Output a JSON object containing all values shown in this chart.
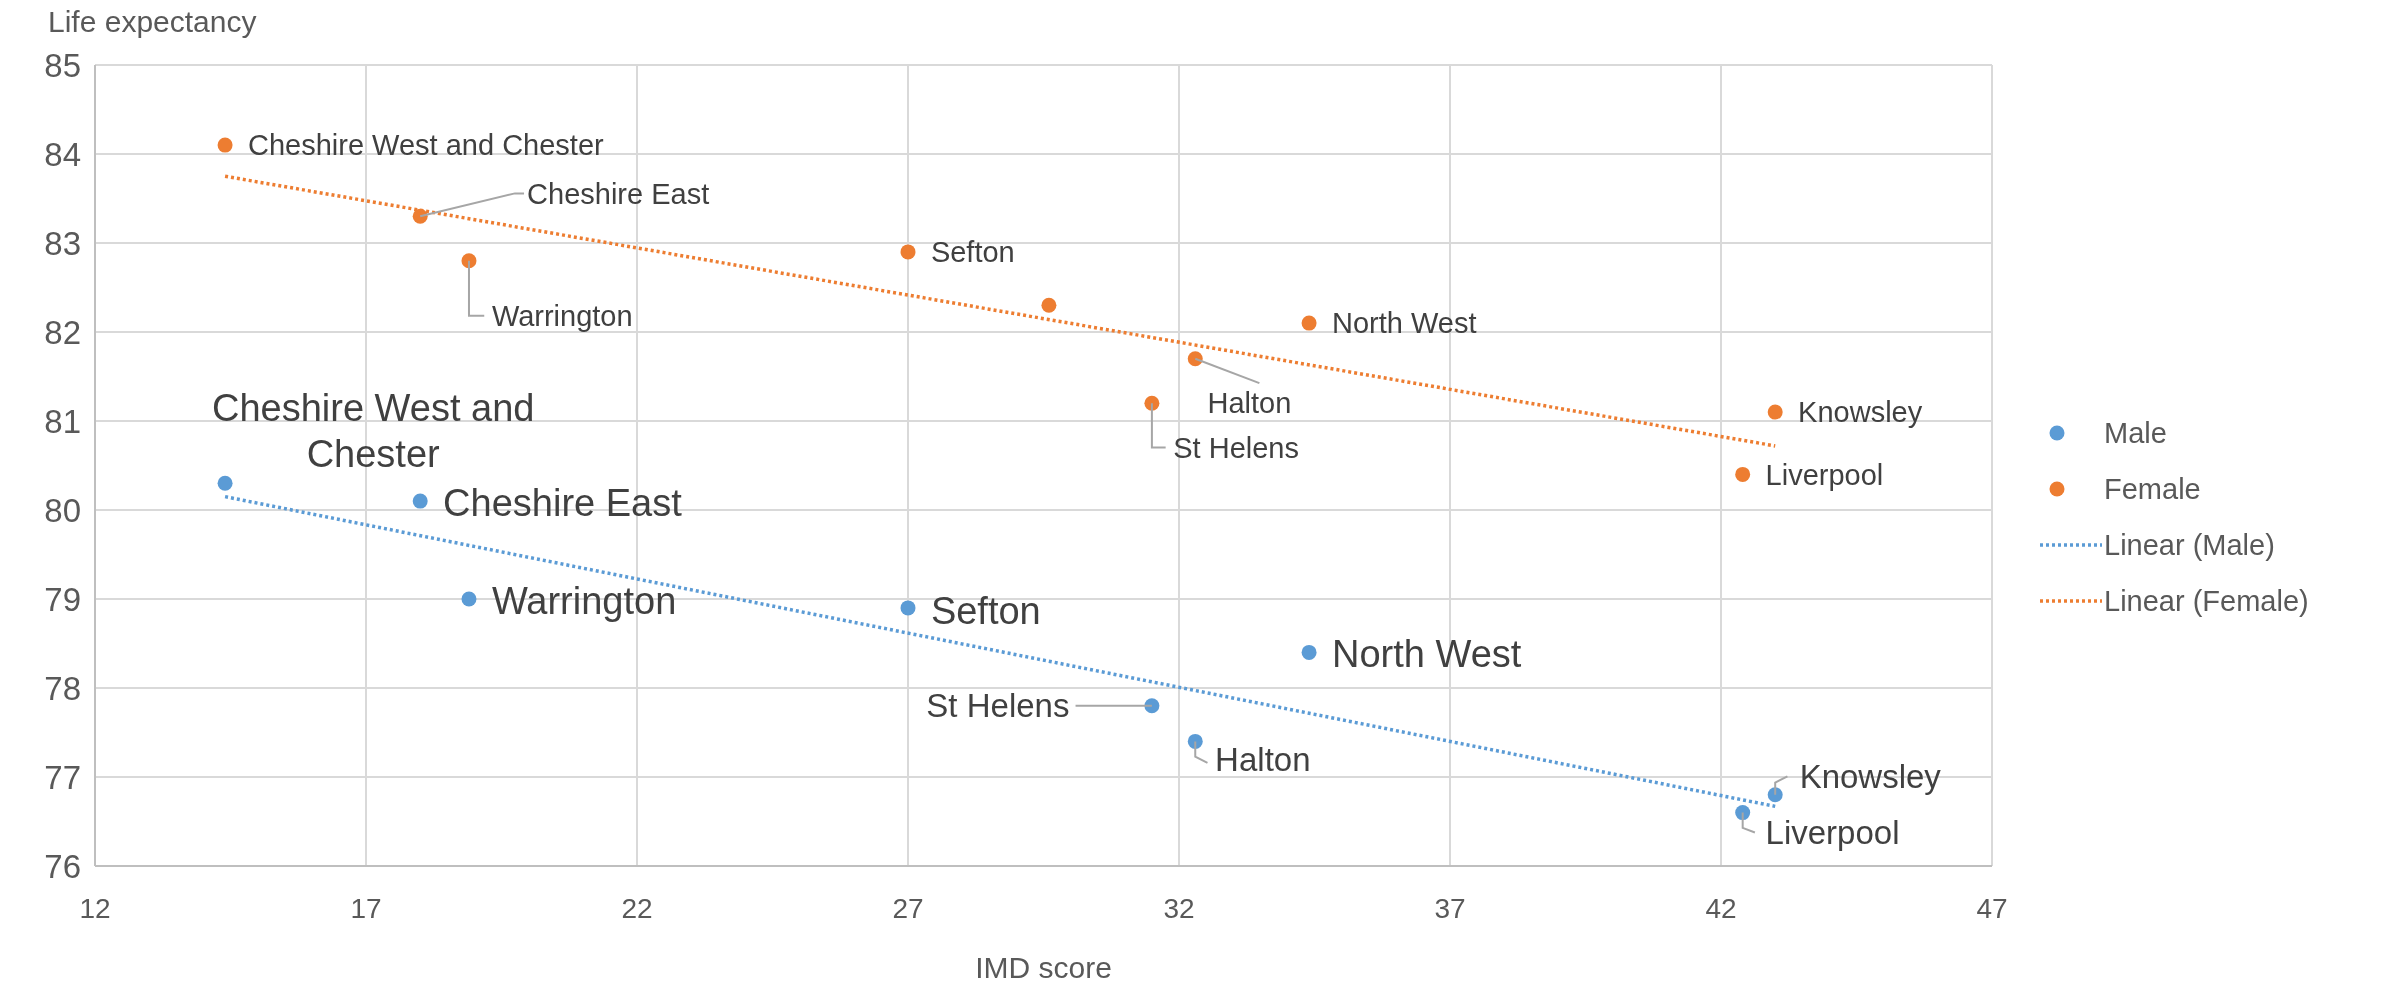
{
  "chart_data": {
    "type": "scatter",
    "xlabel": "IMD score",
    "ylabel": "Life expectancy",
    "xlim": [
      12,
      47
    ],
    "xticks": [
      12,
      17,
      22,
      27,
      32,
      37,
      42,
      47
    ],
    "ylim": [
      76,
      85
    ],
    "yticks": [
      76,
      77,
      78,
      79,
      80,
      81,
      82,
      83,
      84,
      85
    ],
    "grid": true,
    "legend": "right",
    "marker": "circle",
    "series": [
      {
        "name": "Male",
        "color": "#5b9bd5",
        "x": [
          14.4,
          18.0,
          18.9,
          27.0,
          34.4,
          31.5,
          32.3,
          43.0,
          42.4
        ],
        "values": [
          80.3,
          80.1,
          79.0,
          78.9,
          78.4,
          77.8,
          77.4,
          76.8,
          76.6
        ]
      },
      {
        "name": "Female",
        "color": "#ed7d31",
        "x": [
          14.4,
          18.0,
          18.9,
          27.0,
          29.6,
          34.4,
          32.3,
          31.5,
          43.0,
          42.4
        ],
        "values": [
          84.1,
          83.3,
          82.8,
          82.9,
          82.3,
          82.1,
          81.7,
          81.2,
          81.1,
          80.4
        ]
      },
      {
        "name": "Linear (Male)",
        "type": "line",
        "line_style": "dotted",
        "marker": "none",
        "color": "#5b9bd5",
        "x": [
          14.4,
          43.0
        ],
        "values": [
          80.15,
          76.67
        ]
      },
      {
        "name": "Linear (Female)",
        "type": "line",
        "line_style": "dotted",
        "marker": "none",
        "color": "#ed7d31",
        "x": [
          14.4,
          43.0
        ],
        "values": [
          83.75,
          80.72
        ]
      }
    ],
    "annotations": [
      {
        "text": "Cheshire West and Chester",
        "x": 14.4,
        "y": 84.1
      },
      {
        "text": "Cheshire East",
        "x": 18.0,
        "y": 83.3
      },
      {
        "text": "Warrington",
        "x": 18.9,
        "y": 82.8
      },
      {
        "text": "Sefton",
        "x": 27.0,
        "y": 82.9
      },
      {
        "text": "North West",
        "x": 34.4,
        "y": 82.1
      },
      {
        "text": "Halton",
        "x": 32.3,
        "y": 81.7
      },
      {
        "text": "St Helens",
        "x": 31.5,
        "y": 81.2
      },
      {
        "text": "Knowsley",
        "x": 43.0,
        "y": 81.1
      },
      {
        "text": "Liverpool",
        "x": 42.4,
        "y": 80.4
      },
      {
        "text": "Cheshire West and Chester",
        "x": 14.4,
        "y": 80.3
      },
      {
        "text": "Cheshire East",
        "x": 18.0,
        "y": 80.1
      },
      {
        "text": "Warrington",
        "x": 18.9,
        "y": 79.0
      },
      {
        "text": "Sefton",
        "x": 27.0,
        "y": 78.9
      },
      {
        "text": "North West",
        "x": 34.4,
        "y": 78.4
      },
      {
        "text": "St Helens",
        "x": 31.5,
        "y": 77.8
      },
      {
        "text": "Halton",
        "x": 32.3,
        "y": 77.4
      },
      {
        "text": "Knowsley",
        "x": 43.0,
        "y": 76.8
      },
      {
        "text": "Liverpool",
        "x": 42.4,
        "y": 76.6
      }
    ]
  }
}
